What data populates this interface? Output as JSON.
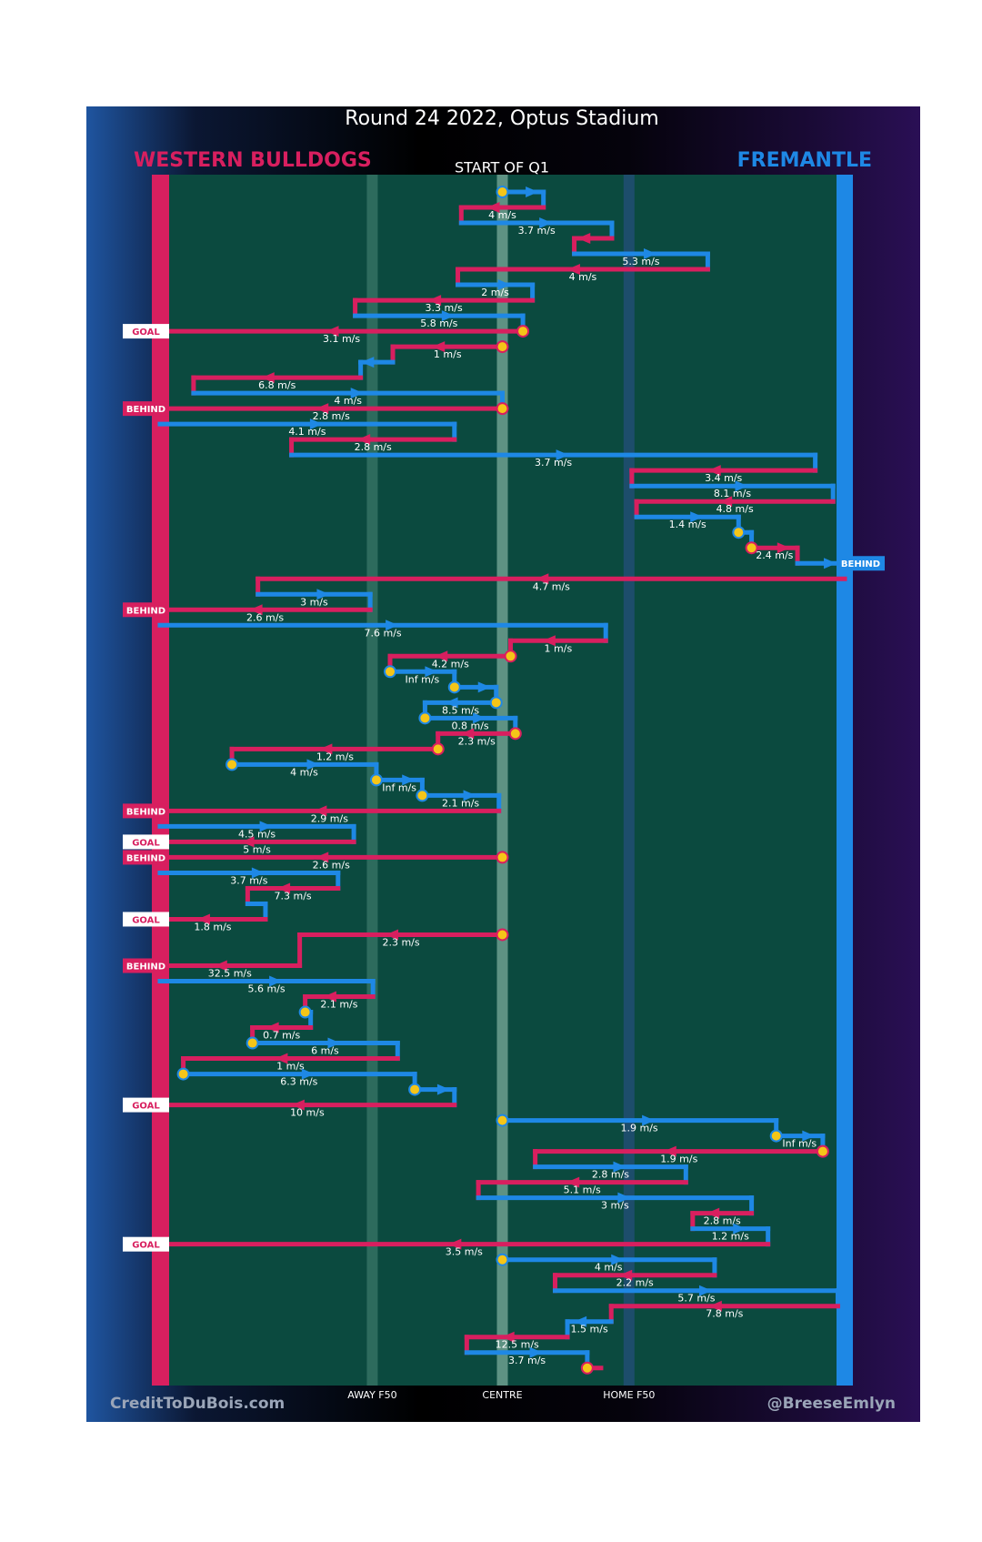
{
  "chart_data": {
    "type": "possession-chain",
    "title": "Round 24 2022, Optus Stadium",
    "subtitle": "START OF Q1",
    "credit": "CreditToDuBois.com",
    "handle": "@BreeseEmlyn",
    "teams": [
      {
        "name": "WESTERN BULLDOGS",
        "color": "#d81f5f"
      },
      {
        "name": "FREMANTLE",
        "color": "#1e88e5"
      }
    ],
    "xlim": [
      0,
      100
    ],
    "field_markers": [
      {
        "label": "AWAY F50",
        "value": 31,
        "color": "#2d6b5d"
      },
      {
        "label": "CENTRE",
        "value": 50,
        "color": "#5e9283"
      },
      {
        "label": "HOME F50",
        "value": 68.5,
        "color": "#1d4d6b"
      }
    ],
    "badge_styles": [
      {
        "outcome": "GOAL",
        "inverted": true
      },
      {
        "outcome": "BEHIND",
        "inverted": false
      }
    ],
    "events": [
      {
        "row": 0,
        "team": "FREMANTLE",
        "from": 50,
        "to": 56,
        "circle": true
      },
      {
        "row": 1,
        "team": "WESTERN BULLDOGS",
        "from": 56,
        "to": 44,
        "label": "4 m/s"
      },
      {
        "row": 2,
        "team": "FREMANTLE",
        "from": 44,
        "to": 66,
        "label": "3.7 m/s"
      },
      {
        "row": 3,
        "team": "WESTERN BULLDOGS",
        "from": 66,
        "to": 60.5
      },
      {
        "row": 4,
        "team": "FREMANTLE",
        "from": 60.5,
        "to": 80,
        "label": "5.3 m/s"
      },
      {
        "row": 5,
        "team": "WESTERN BULLDOGS",
        "from": 80,
        "to": 43.5,
        "label": "4 m/s"
      },
      {
        "row": 6,
        "team": "FREMANTLE",
        "from": 43.5,
        "to": 54.4,
        "label": "2 m/s"
      },
      {
        "row": 7,
        "team": "WESTERN BULLDOGS",
        "from": 54.4,
        "to": 28.5,
        "label": "3.3 m/s"
      },
      {
        "row": 8,
        "team": "FREMANTLE",
        "from": 28.5,
        "to": 53,
        "label": "5.8 m/s"
      },
      {
        "row": 9,
        "team": "WESTERN BULLDOGS",
        "from": 53,
        "to": 0,
        "label": "3.1 m/s",
        "circle": true,
        "outcome": "GOAL"
      },
      {
        "row": 10,
        "team": "WESTERN BULLDOGS",
        "from": 50,
        "to": 34,
        "label": "1 m/s",
        "circle": true
      },
      {
        "row": 11,
        "team": "FREMANTLE",
        "from": 34,
        "to": 29.3
      },
      {
        "row": 12,
        "team": "WESTERN BULLDOGS",
        "from": 29.3,
        "to": 4.9,
        "label": "6.8 m/s"
      },
      {
        "row": 13,
        "team": "FREMANTLE",
        "from": 4.9,
        "to": 50,
        "label": "4 m/s"
      },
      {
        "row": 14,
        "team": "WESTERN BULLDOGS",
        "from": 50,
        "to": 0,
        "label": "2.8 m/s",
        "circle": true,
        "outcome": "BEHIND"
      },
      {
        "row": 15,
        "team": "FREMANTLE",
        "from": 0,
        "to": 43,
        "label": "4.1 m/s"
      },
      {
        "row": 16,
        "team": "WESTERN BULLDOGS",
        "from": 43,
        "to": 19.2,
        "label": "2.8 m/s"
      },
      {
        "row": 17,
        "team": "FREMANTLE",
        "from": 19.2,
        "to": 95.7,
        "label": "3.7 m/s"
      },
      {
        "row": 18,
        "team": "WESTERN BULLDOGS",
        "from": 95.7,
        "to": 68.9,
        "label": "3.4 m/s"
      },
      {
        "row": 19,
        "team": "FREMANTLE",
        "from": 68.9,
        "to": 98.3,
        "label": "8.1 m/s"
      },
      {
        "row": 20,
        "team": "WESTERN BULLDOGS",
        "from": 98.3,
        "to": 69.6,
        "label": "4.8 m/s"
      },
      {
        "row": 21,
        "team": "FREMANTLE",
        "from": 69.6,
        "to": 84.5,
        "label": "1.4 m/s"
      },
      {
        "row": 22,
        "team": "FREMANTLE",
        "from": 84.5,
        "to": 86.4,
        "circle": true
      },
      {
        "row": 23,
        "team": "WESTERN BULLDOGS",
        "from": 86.4,
        "to": 93.1,
        "label": "2.4 m/s",
        "circle": true
      },
      {
        "row": 24,
        "team": "FREMANTLE",
        "from": 93.1,
        "to": 100,
        "outcome": "BEHIND"
      },
      {
        "row": 25,
        "team": "WESTERN BULLDOGS",
        "from": 100,
        "to": 14.3,
        "label": "4.7 m/s"
      },
      {
        "row": 26,
        "team": "FREMANTLE",
        "from": 14.3,
        "to": 30.7,
        "label": "3 m/s"
      },
      {
        "row": 27,
        "team": "WESTERN BULLDOGS",
        "from": 30.7,
        "to": 0,
        "label": "2.6 m/s",
        "outcome": "BEHIND"
      },
      {
        "row": 28,
        "team": "FREMANTLE",
        "from": 0,
        "to": 65.1,
        "label": "7.6 m/s"
      },
      {
        "row": 29,
        "team": "WESTERN BULLDOGS",
        "from": 65.1,
        "to": 51.2,
        "label": "1 m/s"
      },
      {
        "row": 30,
        "team": "WESTERN BULLDOGS",
        "from": 51.2,
        "to": 33.6,
        "label": "4.2 m/s",
        "circle": true
      },
      {
        "row": 31,
        "team": "FREMANTLE",
        "from": 33.6,
        "to": 43,
        "label": "Inf m/s",
        "circle": true
      },
      {
        "row": 32,
        "team": "FREMANTLE",
        "from": 43,
        "to": 49.1,
        "circle": true
      },
      {
        "row": 33,
        "team": "FREMANTLE",
        "from": 49.1,
        "to": 38.7,
        "label": "8.5 m/s",
        "circle": true
      },
      {
        "row": 34,
        "team": "FREMANTLE",
        "from": 38.7,
        "to": 51.9,
        "label": "0.8 m/s",
        "circle": true
      },
      {
        "row": 35,
        "team": "WESTERN BULLDOGS",
        "from": 51.9,
        "to": 40.6,
        "label": "2.3 m/s",
        "circle": true
      },
      {
        "row": 36,
        "team": "WESTERN BULLDOGS",
        "from": 40.6,
        "to": 10.5,
        "label": "1.2 m/s",
        "circle": true
      },
      {
        "row": 37,
        "team": "FREMANTLE",
        "from": 10.5,
        "to": 31.6,
        "label": "4 m/s",
        "circle": true
      },
      {
        "row": 38,
        "team": "FREMANTLE",
        "from": 31.6,
        "to": 38.3,
        "label": "Inf m/s",
        "circle": true
      },
      {
        "row": 39,
        "team": "FREMANTLE",
        "from": 38.3,
        "to": 49.5,
        "label": "2.1 m/s",
        "circle": true
      },
      {
        "row": 40,
        "team": "WESTERN BULLDOGS",
        "from": 49.5,
        "to": 0,
        "label": "2.9 m/s",
        "outcome": "BEHIND"
      },
      {
        "row": 41,
        "team": "FREMANTLE",
        "from": 0,
        "to": 28.3,
        "label": "4.5 m/s"
      },
      {
        "row": 42,
        "team": "WESTERN BULLDOGS",
        "from": 28.3,
        "to": 0,
        "label": "5 m/s",
        "outcome": "GOAL"
      },
      {
        "row": 43,
        "team": "WESTERN BULLDOGS",
        "from": 50,
        "to": 0,
        "label": "2.6 m/s",
        "circle": true,
        "outcome": "BEHIND"
      },
      {
        "row": 44,
        "team": "FREMANTLE",
        "from": 0,
        "to": 26,
        "label": "3.7 m/s"
      },
      {
        "row": 45,
        "team": "WESTERN BULLDOGS",
        "from": 26,
        "to": 12.8,
        "label": "7.3 m/s"
      },
      {
        "row": 46,
        "team": "FREMANTLE",
        "from": 12.8,
        "to": 15.4
      },
      {
        "row": 47,
        "team": "WESTERN BULLDOGS",
        "from": 15.4,
        "to": 0,
        "label": "1.8 m/s",
        "outcome": "GOAL"
      },
      {
        "row": 48,
        "team": "WESTERN BULLDOGS",
        "from": 50,
        "to": 20.4,
        "label": "2.3 m/s",
        "circle": true
      },
      {
        "row": 50,
        "team": "WESTERN BULLDOGS",
        "from": 20.4,
        "to": 0,
        "label": "32.5 m/s",
        "outcome": "BEHIND"
      },
      {
        "row": 51,
        "team": "FREMANTLE",
        "from": 0,
        "to": 31.1,
        "label": "5.6 m/s"
      },
      {
        "row": 52,
        "team": "WESTERN BULLDOGS",
        "from": 31.1,
        "to": 21.2,
        "label": "2.1 m/s"
      },
      {
        "row": 53,
        "team": "FREMANTLE",
        "from": 21.2,
        "to": 22,
        "circle": true
      },
      {
        "row": 54,
        "team": "WESTERN BULLDOGS",
        "from": 22,
        "to": 13.5,
        "label": "0.7 m/s"
      },
      {
        "row": 55,
        "team": "FREMANTLE",
        "from": 13.5,
        "to": 34.7,
        "label": "6 m/s",
        "circle": true
      },
      {
        "row": 56,
        "team": "WESTERN BULLDOGS",
        "from": 34.7,
        "to": 3.4,
        "label": "1 m/s"
      },
      {
        "row": 57,
        "team": "FREMANTLE",
        "from": 3.4,
        "to": 37.2,
        "label": "6.3 m/s",
        "circle": true
      },
      {
        "row": 58,
        "team": "FREMANTLE",
        "from": 37.2,
        "to": 43,
        "circle": true
      },
      {
        "row": 59,
        "team": "WESTERN BULLDOGS",
        "from": 43,
        "to": 0,
        "label": "10 m/s",
        "outcome": "GOAL"
      },
      {
        "row": 60,
        "team": "FREMANTLE",
        "from": 50,
        "to": 90,
        "label": "1.9 m/s",
        "circle": true
      },
      {
        "row": 61,
        "team": "FREMANTLE",
        "from": 90,
        "to": 96.8,
        "label": "Inf m/s",
        "circle": true
      },
      {
        "row": 62,
        "team": "WESTERN BULLDOGS",
        "from": 96.8,
        "to": 54.8,
        "label": "1.9 m/s",
        "circle": true
      },
      {
        "row": 63,
        "team": "FREMANTLE",
        "from": 54.8,
        "to": 76.8,
        "label": "2.8 m/s"
      },
      {
        "row": 64,
        "team": "WESTERN BULLDOGS",
        "from": 76.8,
        "to": 46.5,
        "label": "5.1 m/s"
      },
      {
        "row": 65,
        "team": "FREMANTLE",
        "from": 46.5,
        "to": 86.4,
        "label": "3 m/s"
      },
      {
        "row": 66,
        "team": "WESTERN BULLDOGS",
        "from": 86.4,
        "to": 77.8,
        "label": "2.8 m/s"
      },
      {
        "row": 67,
        "team": "FREMANTLE",
        "from": 77.8,
        "to": 88.8,
        "label": "1.2 m/s"
      },
      {
        "row": 68,
        "team": "WESTERN BULLDOGS",
        "from": 88.8,
        "to": 0,
        "label": "3.5 m/s",
        "outcome": "GOAL"
      },
      {
        "row": 69,
        "team": "FREMANTLE",
        "from": 50,
        "to": 81,
        "label": "4 m/s",
        "circle": true
      },
      {
        "row": 70,
        "team": "WESTERN BULLDOGS",
        "from": 81,
        "to": 57.7,
        "label": "2.2 m/s"
      },
      {
        "row": 71,
        "team": "FREMANTLE",
        "from": 57.7,
        "to": 99,
        "label": "5.7 m/s"
      },
      {
        "row": 72,
        "team": "WESTERN BULLDOGS",
        "from": 99,
        "to": 65.9,
        "label": "7.8 m/s"
      },
      {
        "row": 73,
        "team": "FREMANTLE",
        "from": 65.9,
        "to": 59.5,
        "label": "1.5 m/s"
      },
      {
        "row": 74,
        "team": "WESTERN BULLDOGS",
        "from": 59.5,
        "to": 44.8,
        "label": "12.5 m/s"
      },
      {
        "row": 75,
        "team": "FREMANTLE",
        "from": 44.8,
        "to": 62.4,
        "label": "3.7 m/s"
      },
      {
        "row": 76,
        "team": "WESTERN BULLDOGS",
        "from": 62.4,
        "to": 64.4,
        "circle": true
      }
    ]
  }
}
